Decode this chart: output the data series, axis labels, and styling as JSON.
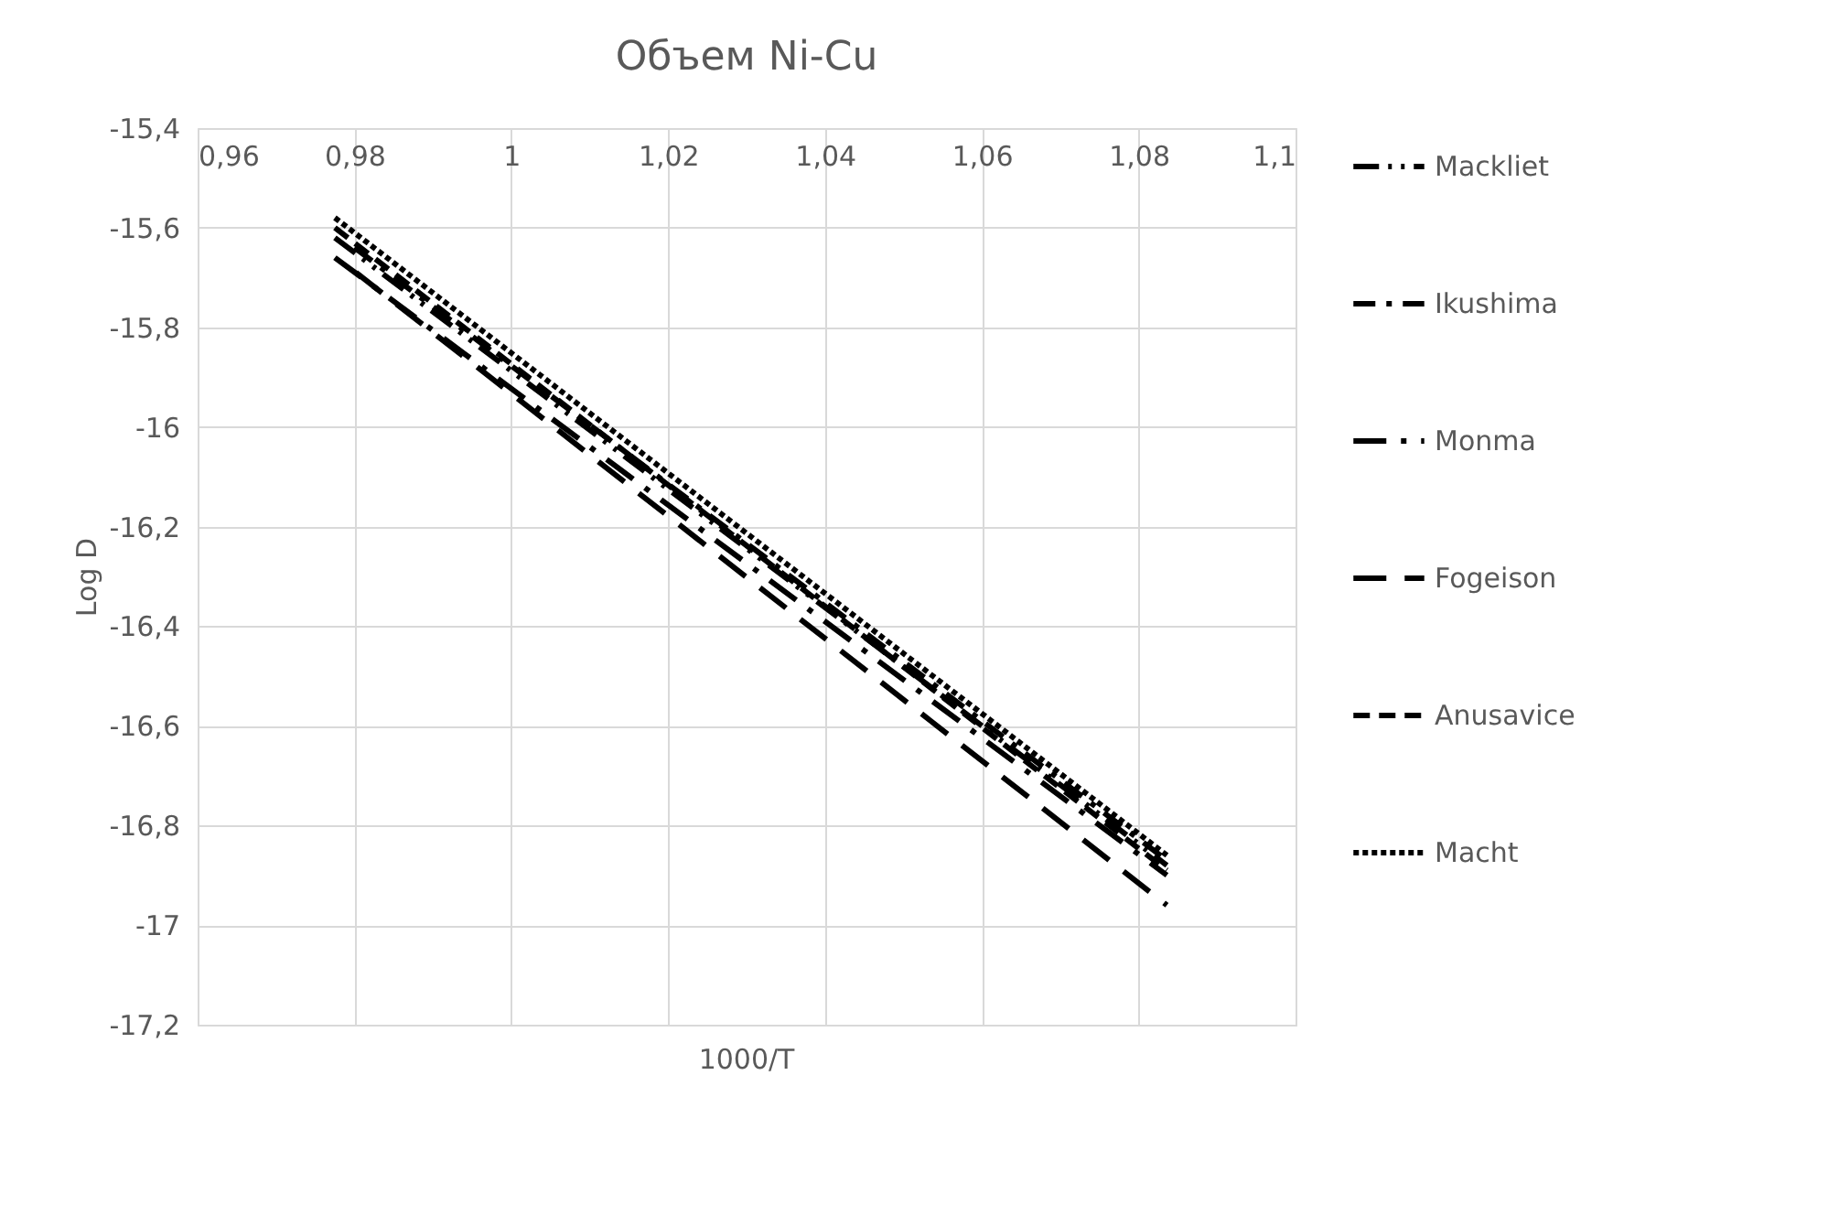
{
  "chart_data": {
    "type": "line",
    "title": "Объем Ni-Cu",
    "xlabel": "1000/T",
    "ylabel": "Log D",
    "xlim": [
      0.96,
      1.1
    ],
    "xticks": [
      {
        "value": 0.96,
        "label": "0,96"
      },
      {
        "value": 0.98,
        "label": "0,98"
      },
      1,
      {
        "value": 1.02,
        "label": "1,02"
      },
      {
        "value": 1.04,
        "label": "1,04"
      },
      {
        "value": 1.06,
        "label": "1,06"
      },
      {
        "value": 1.08,
        "label": "1,08"
      },
      {
        "value": 1.1,
        "label": "1,1"
      }
    ],
    "ylim": [
      -17.2,
      -15.4
    ],
    "yticks": [
      {
        "value": -17.2,
        "label": "-17,2"
      },
      -17,
      {
        "value": -16.8,
        "label": "-16,8"
      },
      {
        "value": -16.6,
        "label": "-16,6"
      },
      {
        "value": -16.4,
        "label": "-16,4"
      },
      {
        "value": -16.2,
        "label": "-16,2"
      },
      -16,
      {
        "value": -15.8,
        "label": "-15,8"
      },
      {
        "value": -15.6,
        "label": "-15,6"
      },
      {
        "value": -15.4,
        "label": "-15,4"
      }
    ],
    "grid": true,
    "legend": "right",
    "marker": "none",
    "series": [
      {
        "name": "Mackliet",
        "color": "#000000",
        "line_style": "dashed",
        "x": [
          0.9775,
          1.0836
        ],
        "values": [
          -15.62,
          -16.88
        ]
      },
      {
        "name": "Ikushima",
        "color": "#000000",
        "line_style": "dashed",
        "x": [
          0.98,
          1.0836
        ],
        "values": [
          -15.64,
          -16.87
        ]
      },
      {
        "name": "Monma",
        "color": "#000000",
        "line_style": "dashed",
        "x": [
          0.9775,
          1.0836
        ],
        "values": [
          -15.66,
          -16.9
        ]
      },
      {
        "name": "Fogeison",
        "color": "#000000",
        "line_style": "dashed",
        "x": [
          0.9802,
          1.0836
        ],
        "values": [
          -15.69,
          -16.96
        ]
      },
      {
        "name": "Anusavice",
        "color": "#000000",
        "line_style": "dashed",
        "x": [
          0.9775,
          1.0836
        ],
        "values": [
          -15.6,
          -16.89
        ]
      },
      {
        "name": "Macht",
        "color": "#000000",
        "line_style": "dotted",
        "x": [
          0.9775,
          1.0836
        ],
        "values": [
          -15.58,
          -16.86
        ]
      }
    ]
  }
}
